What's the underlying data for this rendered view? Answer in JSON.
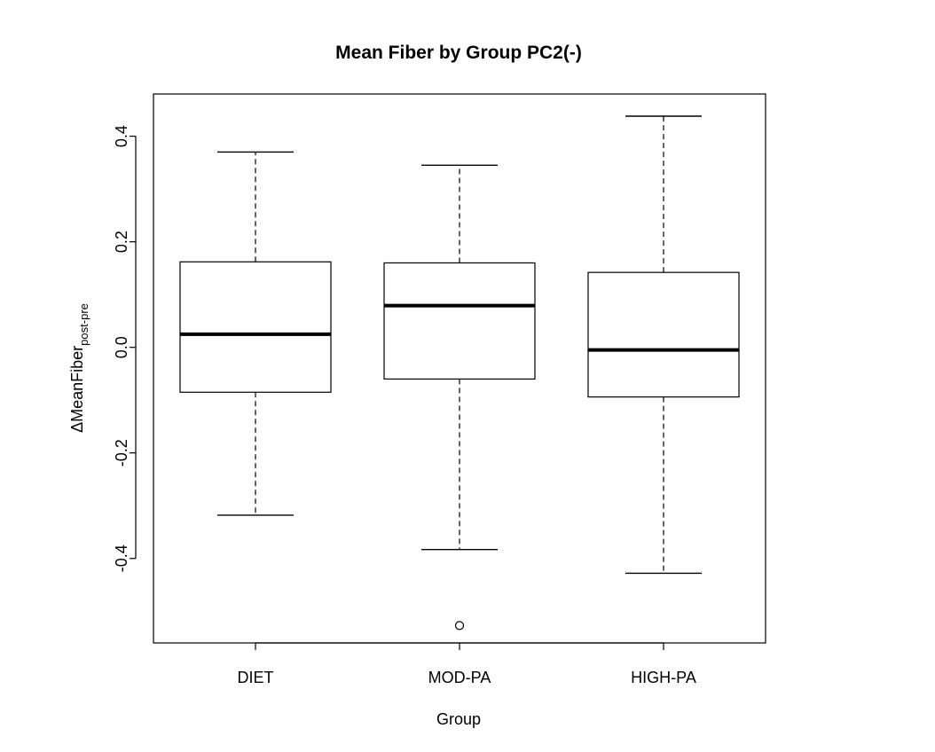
{
  "chart_data": {
    "type": "boxplot",
    "title": "Mean Fiber by Group PC2(-)",
    "xlabel": "Group",
    "ylabel": {
      "prefix": "Δ",
      "main": "MeanFiber",
      "subscript": "post-pre"
    },
    "ylim": [
      -0.56,
      0.48
    ],
    "yticks": [
      -0.4,
      -0.2,
      0.0,
      0.2,
      0.4
    ],
    "ytick_labels": [
      "-0.4",
      "-0.2",
      "0.0",
      "0.2",
      "0.4"
    ],
    "categories": [
      "DIET",
      "MOD-PA",
      "HIGH-PA"
    ],
    "boxes": [
      {
        "category": "DIET",
        "whisker_low": -0.318,
        "q1": -0.085,
        "median": 0.025,
        "q3": 0.162,
        "whisker_high": 0.37,
        "outliers": []
      },
      {
        "category": "MOD-PA",
        "whisker_low": -0.383,
        "q1": -0.06,
        "median": 0.079,
        "q3": 0.16,
        "whisker_high": 0.345,
        "outliers": [
          -0.527
        ]
      },
      {
        "category": "HIGH-PA",
        "whisker_low": -0.428,
        "q1": -0.094,
        "median": -0.005,
        "q3": 0.142,
        "whisker_high": 0.438,
        "outliers": []
      }
    ],
    "grid": false,
    "legend": "none"
  }
}
